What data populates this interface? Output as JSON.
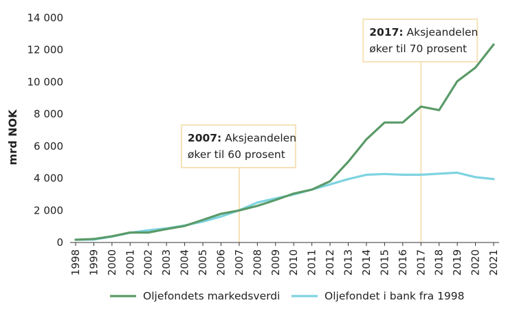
{
  "chart_data": {
    "type": "line",
    "title": "",
    "xlabel": "",
    "ylabel": "mrd NOK",
    "ylim": [
      0,
      14000
    ],
    "yticks": [
      0,
      2000,
      4000,
      6000,
      8000,
      10000,
      12000,
      14000
    ],
    "ytick_labels": [
      "0",
      "2 000",
      "4 000",
      "6 000",
      "8 000",
      "10 000",
      "12 000",
      "14 000"
    ],
    "categories": [
      "1998",
      "1999",
      "2000",
      "2001",
      "2002",
      "2003",
      "2004",
      "2005",
      "2006",
      "2007",
      "2008",
      "2009",
      "2010",
      "2011",
      "2012",
      "2013",
      "2014",
      "2015",
      "2016",
      "2017",
      "2018",
      "2019",
      "2020",
      "2021"
    ],
    "grid": false,
    "legend_position": "bottom",
    "series": [
      {
        "name": "Oljefondets markedsverdi",
        "color": "#5a9a68",
        "values": [
          170,
          220,
          390,
          620,
          620,
          840,
          1030,
          1410,
          1790,
          2000,
          2280,
          2650,
          3050,
          3300,
          3820,
          5030,
          6430,
          7480,
          7480,
          8470,
          8250,
          10050,
          10900,
          12340
        ]
      },
      {
        "name": "Oljefondet i bank fra 1998",
        "color": "#7dd3e0",
        "values": [
          170,
          180,
          370,
          610,
          760,
          880,
          1060,
          1300,
          1620,
          2010,
          2490,
          2750,
          2990,
          3300,
          3620,
          3950,
          4220,
          4270,
          4220,
          4220,
          4290,
          4350,
          4070,
          3950
        ]
      }
    ],
    "annotations": [
      {
        "x": "2007",
        "bold": "2007:",
        "line1": " Aksjeandelen",
        "line2": "øker til 60 prosent"
      },
      {
        "x": "2017",
        "bold": "2017:",
        "line1": " Aksjeandelen",
        "line2": "øker til 70 prosent"
      }
    ]
  }
}
